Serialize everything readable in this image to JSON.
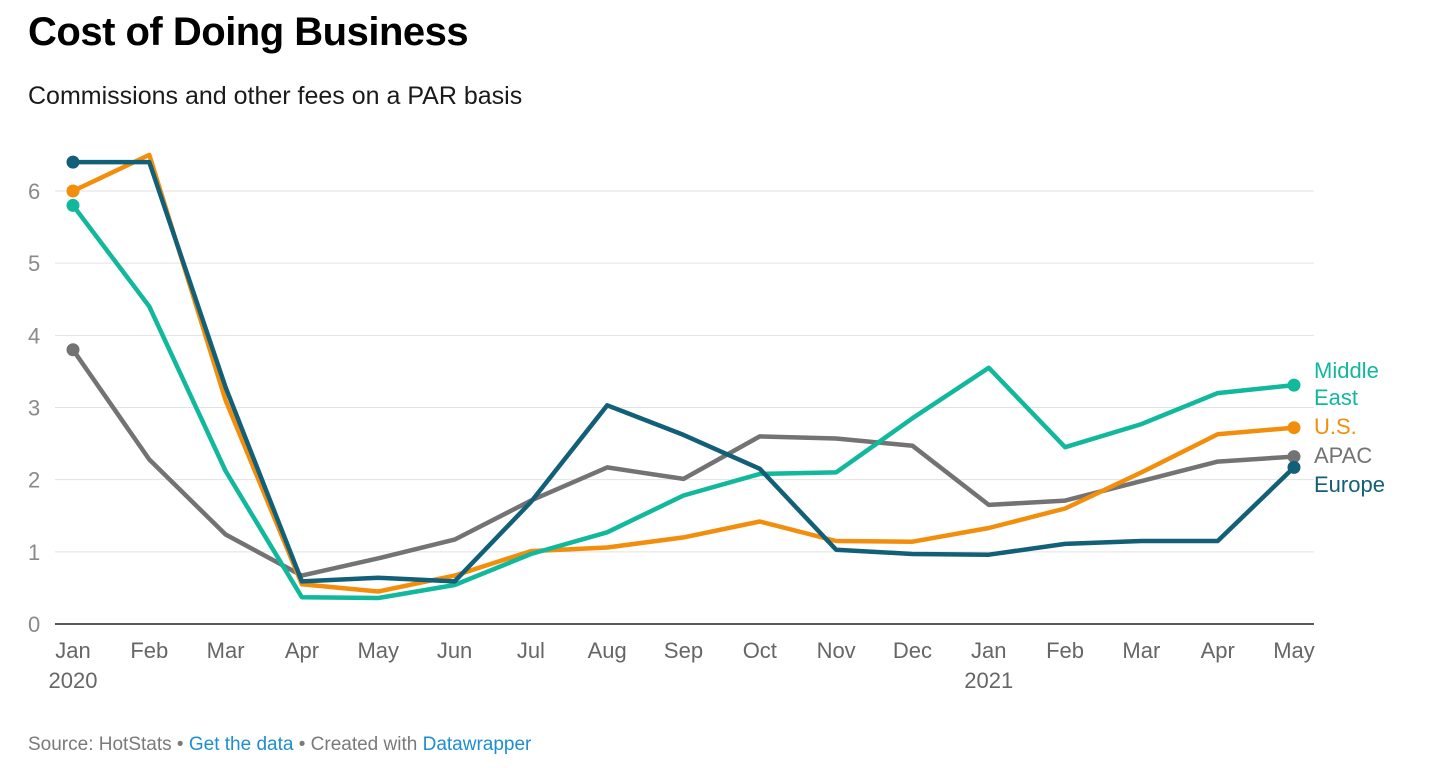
{
  "header": {
    "title": "Cost of Doing Business",
    "subtitle": "Commissions and other fees on a PAR basis"
  },
  "footer": {
    "source": "Source: HotStats",
    "separator": "•",
    "get_data_link": "Get the data",
    "created_with": "Created with",
    "datawrapper_link": "Datawrapper"
  },
  "chart_data": {
    "type": "line",
    "title": "Cost of Doing Business",
    "subtitle": "Commissions and other fees on a PAR basis",
    "xlabel": "",
    "ylabel": "",
    "ylim": [
      0,
      6
    ],
    "yticks": [
      0,
      1,
      2,
      3,
      4,
      5,
      6
    ],
    "grid": true,
    "legend": "direct labels at line ends (right)",
    "categories": [
      "Jan 2020",
      "Feb",
      "Mar",
      "Apr",
      "May",
      "Jun",
      "Jul",
      "Aug",
      "Sep",
      "Oct",
      "Nov",
      "Dec",
      "Jan 2021",
      "Feb",
      "Mar",
      "Apr",
      "May"
    ],
    "x_tick_labels": [
      {
        "month": "Jan",
        "year": "2020"
      },
      {
        "month": "Feb",
        "year": ""
      },
      {
        "month": "Mar",
        "year": ""
      },
      {
        "month": "Apr",
        "year": ""
      },
      {
        "month": "May",
        "year": ""
      },
      {
        "month": "Jun",
        "year": ""
      },
      {
        "month": "Jul",
        "year": ""
      },
      {
        "month": "Aug",
        "year": ""
      },
      {
        "month": "Sep",
        "year": ""
      },
      {
        "month": "Oct",
        "year": ""
      },
      {
        "month": "Nov",
        "year": ""
      },
      {
        "month": "Dec",
        "year": ""
      },
      {
        "month": "Jan",
        "year": "2021"
      },
      {
        "month": "Feb",
        "year": ""
      },
      {
        "month": "Mar",
        "year": ""
      },
      {
        "month": "Apr",
        "year": ""
      },
      {
        "month": "May",
        "year": ""
      }
    ],
    "series": [
      {
        "name": "APAC",
        "label_lines": [
          "APAC"
        ],
        "color": "#737373",
        "values": [
          3.8,
          2.28,
          1.24,
          0.67,
          0.91,
          1.17,
          1.71,
          2.17,
          2.01,
          2.6,
          2.57,
          2.47,
          1.65,
          1.71,
          1.98,
          2.25,
          2.32
        ]
      },
      {
        "name": "U.S.",
        "label_lines": [
          "U.S."
        ],
        "color": "#f28e0c",
        "values": [
          6.0,
          6.5,
          3.1,
          0.55,
          0.45,
          0.67,
          1.01,
          1.06,
          1.2,
          1.42,
          1.15,
          1.14,
          1.33,
          1.6,
          2.1,
          2.63,
          2.72
        ]
      },
      {
        "name": "Middle East",
        "label_lines": [
          "Middle",
          "East"
        ],
        "color": "#12b89c",
        "values": [
          5.8,
          4.4,
          2.12,
          0.37,
          0.36,
          0.54,
          0.97,
          1.27,
          1.78,
          2.08,
          2.1,
          2.85,
          3.55,
          2.45,
          2.77,
          3.2,
          3.31
        ]
      },
      {
        "name": "Europe",
        "label_lines": [
          "Europe"
        ],
        "color": "#125f78",
        "values": [
          6.4,
          6.4,
          3.28,
          0.59,
          0.64,
          0.59,
          1.69,
          3.03,
          2.62,
          2.15,
          1.03,
          0.97,
          0.96,
          1.11,
          1.15,
          1.15,
          2.17
        ]
      }
    ]
  }
}
